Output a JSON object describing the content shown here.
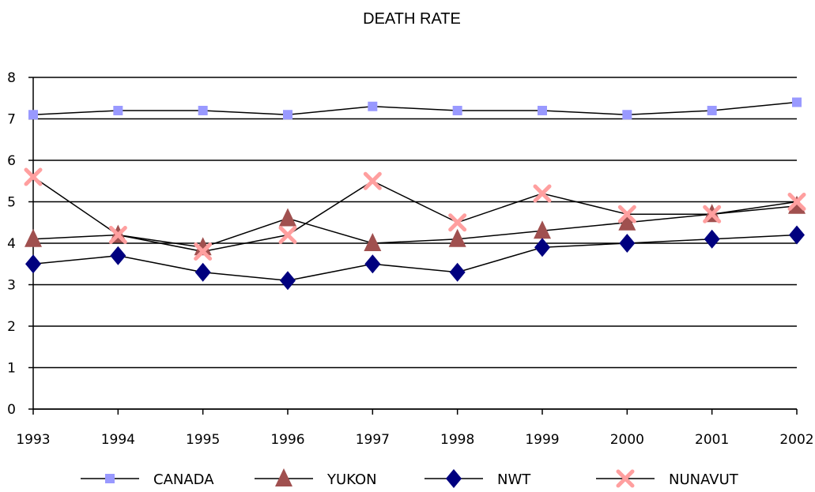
{
  "chart_data": {
    "type": "line",
    "title": "DEATH RATE",
    "xlabel": "",
    "ylabel": "",
    "ylim": [
      0,
      8
    ],
    "yticks": [
      "0",
      "1",
      "2",
      "3",
      "4",
      "5",
      "6",
      "7",
      "8"
    ],
    "categories": [
      "1993",
      "1994",
      "1995",
      "1996",
      "1997",
      "1998",
      "1999",
      "2000",
      "2001",
      "2002"
    ],
    "grid": true,
    "legend_position": "bottom",
    "series": [
      {
        "name": "CANADA",
        "marker": "square",
        "color": "#9999ff",
        "line_color": "#000000",
        "values": [
          7.1,
          7.2,
          7.2,
          7.1,
          7.3,
          7.2,
          7.2,
          7.1,
          7.2,
          7.4
        ]
      },
      {
        "name": "YUKON",
        "marker": "triangle",
        "color": "#a0504f",
        "line_color": "#000000",
        "values": [
          4.1,
          4.2,
          3.9,
          4.6,
          4.0,
          4.1,
          4.3,
          4.5,
          4.7,
          4.9
        ]
      },
      {
        "name": "NWT",
        "marker": "diamond",
        "color": "#00007f",
        "line_color": "#000000",
        "values": [
          3.5,
          3.7,
          3.3,
          3.1,
          3.5,
          3.3,
          3.9,
          4.0,
          4.1,
          4.2
        ]
      },
      {
        "name": "NUNAVUT",
        "marker": "x",
        "color": "#ff9f9f",
        "line_color": "#000000",
        "values": [
          5.6,
          4.2,
          3.8,
          4.2,
          5.5,
          4.5,
          5.2,
          4.7,
          4.7,
          5.0
        ]
      }
    ]
  }
}
